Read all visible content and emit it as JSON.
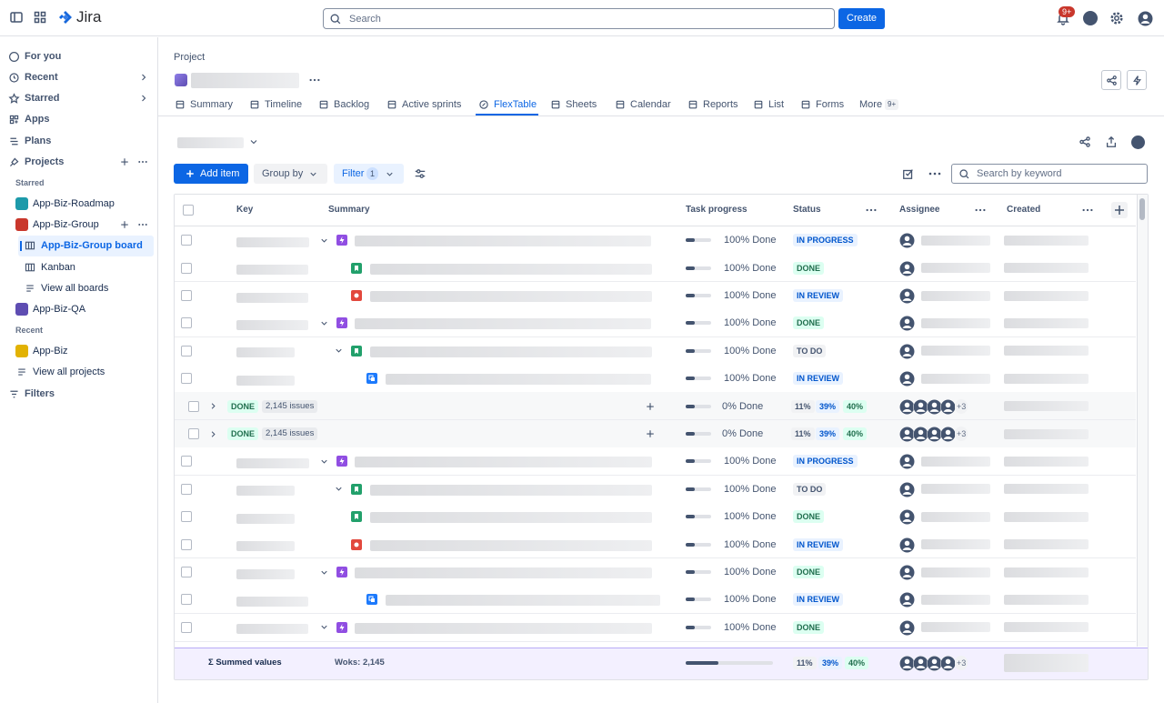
{
  "topbar": {
    "product": "Jira",
    "search_placeholder": "Search",
    "create_button": "Create",
    "notification_count": "9+"
  },
  "sidebar": {
    "nav": [
      "For you",
      "Recent",
      "Starred",
      "Apps",
      "Plans",
      "Projects"
    ],
    "starred_heading": "Starred",
    "starred_projects": [
      "App-Biz-Roadmap",
      "App-Biz-Group"
    ],
    "boards": [
      "App-Biz-Group board",
      "Kanban",
      "View all boards"
    ],
    "other_projects": [
      "App-Biz-QA"
    ],
    "recent_heading": "Recent",
    "recent": [
      "App-Biz",
      "View all projects"
    ],
    "filters": "Filters"
  },
  "project_header": {
    "breadcrumb": "Project",
    "tabs": [
      "Summary",
      "Timeline",
      "Backlog",
      "Active sprints",
      "FlexTable",
      "Sheets",
      "Calendar",
      "Reports",
      "List",
      "Forms",
      "More"
    ],
    "more_count": "9+"
  },
  "toolbar": {
    "add_item": "Add item",
    "group_by": "Group by",
    "filter": "Filter",
    "filter_count": "1",
    "search_placeholder": "Search by keyword"
  },
  "table": {
    "columns": [
      "Key",
      "Summary",
      "Task progress",
      "Status",
      "Assignee",
      "Created"
    ],
    "rows": [
      {
        "progress": "100% Done",
        "status": "IN PROGRESS"
      },
      {
        "progress": "100% Done",
        "status": "DONE"
      },
      {
        "progress": "100% Done",
        "status": "IN REVIEW"
      },
      {
        "progress": "100% Done",
        "status": "DONE"
      },
      {
        "progress": "100% Done",
        "status": "TO DO"
      },
      {
        "progress": "100% Done",
        "status": "IN REVIEW"
      },
      {
        "status": "DONE",
        "issue_count": "2,145 issues",
        "progress": "0% Done",
        "status_shares": [
          "11%",
          "39%",
          "40%"
        ],
        "more_assignees": "+3"
      },
      {
        "status": "DONE",
        "issue_count": "2,145 issues",
        "progress": "0% Done",
        "status_shares": [
          "11%",
          "39%",
          "40%"
        ],
        "more_assignees": "+3"
      },
      {
        "progress": "100% Done",
        "status": "IN PROGRESS"
      },
      {
        "progress": "100% Done",
        "status": "TO DO"
      },
      {
        "progress": "100% Done",
        "status": "DONE"
      },
      {
        "progress": "100% Done",
        "status": "IN REVIEW"
      },
      {
        "progress": "100% Done",
        "status": "DONE"
      },
      {
        "progress": "100% Done",
        "status": "IN REVIEW"
      },
      {
        "progress": "100% Done",
        "status": "DONE"
      }
    ],
    "footer": {
      "label": "Σ Summed values",
      "work_items": "Woks: 2,145",
      "status_shares": [
        "11%",
        "39%",
        "40%"
      ],
      "more_assignees": "+3"
    }
  }
}
